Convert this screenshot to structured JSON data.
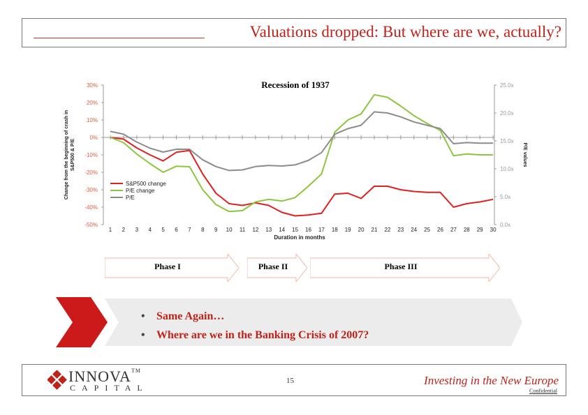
{
  "slide": {
    "title": "Valuations dropped: But where are we, actually?",
    "page_number": "15",
    "tagline": "Investing in the New Europe",
    "confidential": "Confidential",
    "logo_name": "INNOVA",
    "logo_tm": "TM",
    "logo_sub": "CAPITAL"
  },
  "phases": [
    {
      "label": "Phase I"
    },
    {
      "label": "Phase II"
    },
    {
      "label": "Phase III"
    }
  ],
  "bullets": [
    "Same Again…",
    "Where are we in the Banking Crisis of 2007?"
  ],
  "colors": {
    "accent": "#c0221a",
    "sp500": "#e02020",
    "pe_change": "#8cc63f",
    "pe": "#8c8c8c"
  },
  "chart_data": {
    "type": "line",
    "title": "Recession of 1937",
    "xlabel": "Duration in months",
    "ylabel_left": "Change from the beginning of crash in S&P500 & P/E",
    "ylabel_right": "P/E values",
    "x": [
      1,
      2,
      3,
      4,
      5,
      6,
      7,
      8,
      9,
      10,
      11,
      12,
      13,
      14,
      15,
      16,
      17,
      18,
      19,
      20,
      21,
      22,
      23,
      24,
      25,
      26,
      27,
      28,
      29,
      30
    ],
    "ylim_left": [
      -50,
      30
    ],
    "ylim_right": [
      0,
      25
    ],
    "yticks_left": [
      "30%",
      "20%",
      "10%",
      "0%",
      "-10%",
      "-20%",
      "-30%",
      "-40%",
      "-50%"
    ],
    "yticks_right": [
      "25.0x",
      "20.0x",
      "15.0x",
      "10.0x",
      "5.0x",
      "0.0x"
    ],
    "legend_position": "left-middle",
    "series": [
      {
        "name": "S&P500 change",
        "axis": "left",
        "color": "#e02020",
        "values": [
          0,
          -1,
          -6,
          -10,
          -13.5,
          -8.5,
          -7.5,
          -21,
          -32,
          -38,
          -39,
          -37.5,
          -39,
          -43,
          -45,
          -44.5,
          -43.5,
          -32.5,
          -32,
          -35,
          -28,
          -28,
          -30,
          -31,
          -31.5,
          -31.5,
          -40,
          -38,
          -37,
          -35.5
        ]
      },
      {
        "name": "P/E change",
        "axis": "left",
        "color": "#8cc63f",
        "values": [
          0,
          -3,
          -9.5,
          -15,
          -20,
          -16.5,
          -16.8,
          -30,
          -38.5,
          -42.5,
          -42,
          -37,
          -35.5,
          -36.5,
          -34.5,
          -28,
          -21,
          3,
          10,
          13.5,
          24.5,
          23,
          18,
          12.5,
          8,
          4,
          -10.5,
          -9.5,
          -10,
          -10
        ]
      },
      {
        "name": "P/E",
        "axis": "right",
        "color": "#8c8c8c",
        "values": [
          16.7,
          16.2,
          14.8,
          13.7,
          13.0,
          13.5,
          13.5,
          11.6,
          10.4,
          9.7,
          9.8,
          10.4,
          10.6,
          10.5,
          10.7,
          11.5,
          12.9,
          16.2,
          17.2,
          17.8,
          20.2,
          20.0,
          19.3,
          18.4,
          17.8,
          17.2,
          14.5,
          14.7,
          14.6,
          14.6
        ]
      }
    ]
  }
}
